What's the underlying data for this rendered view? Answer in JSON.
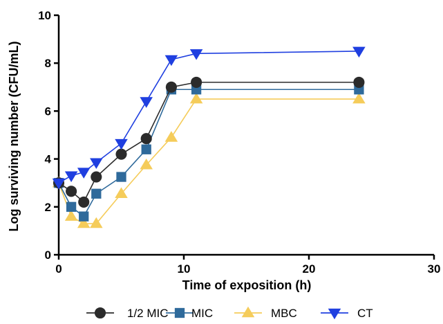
{
  "chart_data": {
    "type": "line",
    "xlabel": "Time of exposition (h)",
    "ylabel": "Log surviving number  (CFU/mL)",
    "xlim": [
      0,
      30
    ],
    "ylim": [
      0,
      10
    ],
    "x_ticks": [
      0,
      10,
      20,
      30
    ],
    "y_ticks": [
      0,
      2,
      4,
      6,
      8,
      10
    ],
    "grid": false,
    "legend_position": "bottom",
    "series": [
      {
        "name": "1/2 MIC",
        "color": "#2b2b2b",
        "marker": "circle",
        "x": [
          0,
          1,
          2,
          3,
          5,
          7,
          9,
          11,
          24
        ],
        "y": [
          3.0,
          2.65,
          2.2,
          3.25,
          4.2,
          4.85,
          7.0,
          7.2,
          7.2
        ]
      },
      {
        "name": "MIC",
        "color": "#2f6a9b",
        "marker": "square",
        "x": [
          0,
          1,
          2,
          3,
          5,
          7,
          9,
          11,
          24
        ],
        "y": [
          3.0,
          2.0,
          1.6,
          2.55,
          3.25,
          4.4,
          6.9,
          6.9,
          6.9
        ]
      },
      {
        "name": "MBC",
        "color": "#f5cc5a",
        "marker": "triangle-up",
        "x": [
          0,
          1,
          2,
          3,
          5,
          7,
          9,
          11,
          24
        ],
        "y": [
          3.0,
          1.6,
          1.3,
          1.3,
          2.55,
          3.75,
          4.9,
          6.5,
          6.5
        ]
      },
      {
        "name": "CT",
        "color": "#1f3fe0",
        "marker": "triangle-down",
        "x": [
          0,
          1,
          2,
          3,
          5,
          7,
          9,
          11,
          24
        ],
        "y": [
          3.0,
          3.3,
          3.45,
          3.85,
          4.65,
          6.4,
          8.15,
          8.4,
          8.5
        ]
      }
    ]
  }
}
